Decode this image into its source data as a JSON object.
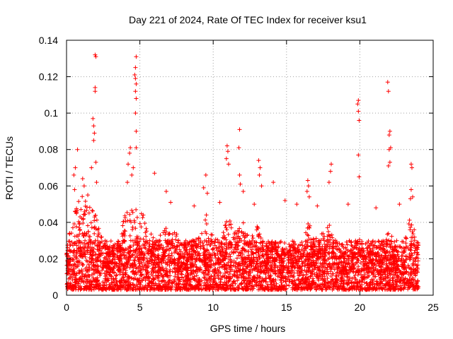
{
  "chart_data": {
    "type": "scatter",
    "title": "Day 221 of 2024, Rate Of TEC Index for receiver ksu1",
    "xlabel": "GPS time / hours",
    "ylabel": "ROTI / TECUs",
    "xlim": [
      0,
      25
    ],
    "ylim": [
      0,
      0.14
    ],
    "x_ticks": [
      0,
      5,
      10,
      15,
      20,
      25
    ],
    "x_tick_labels": [
      "0",
      "5",
      "10",
      "15",
      "20",
      "25"
    ],
    "y_ticks": [
      0,
      0.02,
      0.04,
      0.06,
      0.08,
      0.1,
      0.12,
      0.14
    ],
    "y_tick_labels": [
      "0",
      "0.02",
      "0.04",
      "0.06",
      "0.08",
      "0.1",
      "0.12",
      "0.14"
    ],
    "grid": true,
    "marker": "+",
    "color": "#ff0000",
    "bulk_range": [
      0.003,
      0.03
    ],
    "notable_points": [
      {
        "x": 1.95,
        "y": 0.132
      },
      {
        "x": 2.0,
        "y": 0.131
      },
      {
        "x": 1.95,
        "y": 0.114
      },
      {
        "x": 1.95,
        "y": 0.112
      },
      {
        "x": 1.8,
        "y": 0.097
      },
      {
        "x": 1.85,
        "y": 0.093
      },
      {
        "x": 1.9,
        "y": 0.089
      },
      {
        "x": 1.85,
        "y": 0.085
      },
      {
        "x": 2.0,
        "y": 0.073
      },
      {
        "x": 1.7,
        "y": 0.07
      },
      {
        "x": 2.05,
        "y": 0.062
      },
      {
        "x": 0.75,
        "y": 0.08
      },
      {
        "x": 0.6,
        "y": 0.07
      },
      {
        "x": 0.5,
        "y": 0.066
      },
      {
        "x": 0.55,
        "y": 0.058
      },
      {
        "x": 1.1,
        "y": 0.064
      },
      {
        "x": 1.2,
        "y": 0.06
      },
      {
        "x": 1.45,
        "y": 0.055
      },
      {
        "x": 4.75,
        "y": 0.131
      },
      {
        "x": 4.7,
        "y": 0.125
      },
      {
        "x": 4.65,
        "y": 0.121
      },
      {
        "x": 4.7,
        "y": 0.119
      },
      {
        "x": 4.75,
        "y": 0.116
      },
      {
        "x": 4.7,
        "y": 0.112
      },
      {
        "x": 4.75,
        "y": 0.108
      },
      {
        "x": 4.7,
        "y": 0.1
      },
      {
        "x": 4.75,
        "y": 0.09
      },
      {
        "x": 4.75,
        "y": 0.081
      },
      {
        "x": 4.35,
        "y": 0.081
      },
      {
        "x": 4.3,
        "y": 0.078
      },
      {
        "x": 4.2,
        "y": 0.072
      },
      {
        "x": 4.55,
        "y": 0.07
      },
      {
        "x": 4.45,
        "y": 0.066
      },
      {
        "x": 4.15,
        "y": 0.062
      },
      {
        "x": 6.0,
        "y": 0.067
      },
      {
        "x": 6.8,
        "y": 0.057
      },
      {
        "x": 7.1,
        "y": 0.051
      },
      {
        "x": 9.5,
        "y": 0.066
      },
      {
        "x": 9.35,
        "y": 0.059
      },
      {
        "x": 9.6,
        "y": 0.056
      },
      {
        "x": 10.95,
        "y": 0.082
      },
      {
        "x": 11.0,
        "y": 0.079
      },
      {
        "x": 10.9,
        "y": 0.075
      },
      {
        "x": 11.05,
        "y": 0.072
      },
      {
        "x": 11.8,
        "y": 0.091
      },
      {
        "x": 11.75,
        "y": 0.081
      },
      {
        "x": 11.8,
        "y": 0.066
      },
      {
        "x": 11.85,
        "y": 0.061
      },
      {
        "x": 12.05,
        "y": 0.057
      },
      {
        "x": 13.1,
        "y": 0.074
      },
      {
        "x": 13.2,
        "y": 0.07
      },
      {
        "x": 13.15,
        "y": 0.066
      },
      {
        "x": 13.3,
        "y": 0.06
      },
      {
        "x": 14.1,
        "y": 0.062
      },
      {
        "x": 16.45,
        "y": 0.063
      },
      {
        "x": 16.5,
        "y": 0.06
      },
      {
        "x": 16.4,
        "y": 0.057
      },
      {
        "x": 16.55,
        "y": 0.054
      },
      {
        "x": 18.05,
        "y": 0.072
      },
      {
        "x": 18.0,
        "y": 0.068
      },
      {
        "x": 17.9,
        "y": 0.062
      },
      {
        "x": 19.9,
        "y": 0.107
      },
      {
        "x": 19.85,
        "y": 0.105
      },
      {
        "x": 19.9,
        "y": 0.101
      },
      {
        "x": 19.95,
        "y": 0.096
      },
      {
        "x": 19.9,
        "y": 0.077
      },
      {
        "x": 19.95,
        "y": 0.065
      },
      {
        "x": 21.9,
        "y": 0.117
      },
      {
        "x": 21.95,
        "y": 0.112
      },
      {
        "x": 22.05,
        "y": 0.09
      },
      {
        "x": 22.0,
        "y": 0.088
      },
      {
        "x": 22.1,
        "y": 0.081
      },
      {
        "x": 22.0,
        "y": 0.08
      },
      {
        "x": 21.95,
        "y": 0.071
      },
      {
        "x": 22.05,
        "y": 0.073
      },
      {
        "x": 23.5,
        "y": 0.072
      },
      {
        "x": 23.55,
        "y": 0.07
      },
      {
        "x": 23.5,
        "y": 0.058
      },
      {
        "x": 23.45,
        "y": 0.053
      },
      {
        "x": 23.6,
        "y": 0.054
      },
      {
        "x": 8.7,
        "y": 0.049
      },
      {
        "x": 10.45,
        "y": 0.051
      },
      {
        "x": 12.8,
        "y": 0.05
      },
      {
        "x": 14.9,
        "y": 0.052
      },
      {
        "x": 15.7,
        "y": 0.05
      },
      {
        "x": 17.1,
        "y": 0.049
      },
      {
        "x": 19.2,
        "y": 0.05
      },
      {
        "x": 21.1,
        "y": 0.048
      },
      {
        "x": 22.7,
        "y": 0.05
      }
    ],
    "envelope": [
      {
        "x": 0.0,
        "y": 0.028
      },
      {
        "x": 0.5,
        "y": 0.045
      },
      {
        "x": 1.0,
        "y": 0.055
      },
      {
        "x": 1.5,
        "y": 0.05
      },
      {
        "x": 2.0,
        "y": 0.045
      },
      {
        "x": 2.5,
        "y": 0.03
      },
      {
        "x": 3.0,
        "y": 0.025
      },
      {
        "x": 3.5,
        "y": 0.03
      },
      {
        "x": 4.0,
        "y": 0.045
      },
      {
        "x": 4.5,
        "y": 0.05
      },
      {
        "x": 5.0,
        "y": 0.048
      },
      {
        "x": 5.5,
        "y": 0.04
      },
      {
        "x": 6.0,
        "y": 0.03
      },
      {
        "x": 6.5,
        "y": 0.034
      },
      {
        "x": 7.0,
        "y": 0.04
      },
      {
        "x": 7.5,
        "y": 0.035
      },
      {
        "x": 8.0,
        "y": 0.028
      },
      {
        "x": 8.5,
        "y": 0.03
      },
      {
        "x": 9.0,
        "y": 0.032
      },
      {
        "x": 9.5,
        "y": 0.045
      },
      {
        "x": 10.0,
        "y": 0.032
      },
      {
        "x": 10.5,
        "y": 0.03
      },
      {
        "x": 11.0,
        "y": 0.045
      },
      {
        "x": 11.5,
        "y": 0.035
      },
      {
        "x": 12.0,
        "y": 0.042
      },
      {
        "x": 12.5,
        "y": 0.03
      },
      {
        "x": 13.0,
        "y": 0.038
      },
      {
        "x": 13.5,
        "y": 0.028
      },
      {
        "x": 14.0,
        "y": 0.03
      },
      {
        "x": 14.5,
        "y": 0.025
      },
      {
        "x": 15.0,
        "y": 0.026
      },
      {
        "x": 15.5,
        "y": 0.027
      },
      {
        "x": 16.0,
        "y": 0.03
      },
      {
        "x": 16.5,
        "y": 0.04
      },
      {
        "x": 17.0,
        "y": 0.032
      },
      {
        "x": 17.5,
        "y": 0.035
      },
      {
        "x": 18.0,
        "y": 0.04
      },
      {
        "x": 18.5,
        "y": 0.026
      },
      {
        "x": 19.0,
        "y": 0.025
      },
      {
        "x": 19.5,
        "y": 0.025
      },
      {
        "x": 20.0,
        "y": 0.032
      },
      {
        "x": 20.5,
        "y": 0.022
      },
      {
        "x": 21.0,
        "y": 0.028
      },
      {
        "x": 21.5,
        "y": 0.03
      },
      {
        "x": 22.0,
        "y": 0.035
      },
      {
        "x": 22.5,
        "y": 0.028
      },
      {
        "x": 23.0,
        "y": 0.03
      },
      {
        "x": 23.5,
        "y": 0.045
      },
      {
        "x": 24.0,
        "y": 0.03
      }
    ]
  }
}
